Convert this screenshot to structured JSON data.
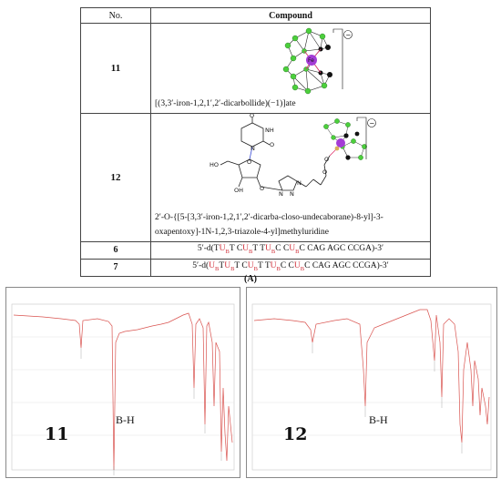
{
  "table": {
    "headers": {
      "no": "No.",
      "compound": "Compound"
    },
    "rows": [
      {
        "no": "11",
        "name": "[(3,3′-iron-1,2,1′,2′-dicarbollide)(−1)]ate"
      },
      {
        "no": "12",
        "name_line1": "2′-O-{[5-[3,3′-iron-1,2,1′,2′-dicarba-closo-undecaborane)-8-yl]-3-",
        "name_line2": "oxapentoxy]-1N-1,2,3-triazole-4-yl]methyluridine"
      },
      {
        "no": "6",
        "sequence": [
          {
            "t": "5′-d(T",
            "hl": false
          },
          {
            "t": "U",
            "hl": true
          },
          {
            "t": "B",
            "hl": true,
            "sub": true
          },
          {
            "t": "T C",
            "hl": false
          },
          {
            "t": "U",
            "hl": true
          },
          {
            "t": "B",
            "hl": true,
            "sub": true
          },
          {
            "t": "T T",
            "hl": false
          },
          {
            "t": "U",
            "hl": true
          },
          {
            "t": "B",
            "hl": true,
            "sub": true
          },
          {
            "t": "C C",
            "hl": false
          },
          {
            "t": "U",
            "hl": true
          },
          {
            "t": "B",
            "hl": true,
            "sub": true
          },
          {
            "t": "C CAG AGC CCGA)-3′",
            "hl": false
          }
        ]
      },
      {
        "no": "7",
        "sequence": [
          {
            "t": "5′-d(",
            "hl": false
          },
          {
            "t": "U",
            "hl": true
          },
          {
            "t": "B",
            "hl": true,
            "sub": true
          },
          {
            "t": "T",
            "hl": false
          },
          {
            "t": "U",
            "hl": true
          },
          {
            "t": "B",
            "hl": true,
            "sub": true
          },
          {
            "t": "T C",
            "hl": false
          },
          {
            "t": "U",
            "hl": true
          },
          {
            "t": "B",
            "hl": true,
            "sub": true
          },
          {
            "t": "T T",
            "hl": false
          },
          {
            "t": "U",
            "hl": true
          },
          {
            "t": "B",
            "hl": true,
            "sub": true
          },
          {
            "t": "C C",
            "hl": false
          },
          {
            "t": "U",
            "hl": true
          },
          {
            "t": "B",
            "hl": true,
            "sub": true
          },
          {
            "t": "C CAG AGC CCGA)-3′",
            "hl": false
          }
        ]
      }
    ],
    "struct12_labels": {
      "o1": "O",
      "nh": "NH",
      "o2": "O",
      "n": "N",
      "o3": "O",
      "ho": "HO",
      "o4": "O",
      "oh": "OH",
      "o5": "O",
      "n1": "N",
      "n2": "N",
      "n3": "N",
      "o6": "O",
      "o7": "O"
    },
    "fe_label": "Fe",
    "charge": "−"
  },
  "figure_label": "(A)",
  "spectra": [
    {
      "label": "11",
      "band": "B-H"
    },
    {
      "label": "12",
      "band": "B-H"
    }
  ]
}
